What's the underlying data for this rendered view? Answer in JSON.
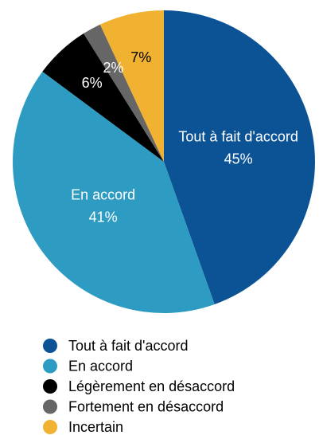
{
  "chart_data": {
    "type": "pie",
    "categories": [
      "Tout à fait d'accord",
      "En accord",
      "Légèrement en désaccord",
      "Fortement en désaccord",
      "Incertain"
    ],
    "values": [
      45,
      41,
      6,
      2,
      7
    ],
    "value_labels": [
      "45%",
      "41%",
      "6%",
      "2%",
      "7%"
    ],
    "colors": [
      "#0b5394",
      "#2e9cc2",
      "#000000",
      "#666666",
      "#f1b231"
    ]
  }
}
